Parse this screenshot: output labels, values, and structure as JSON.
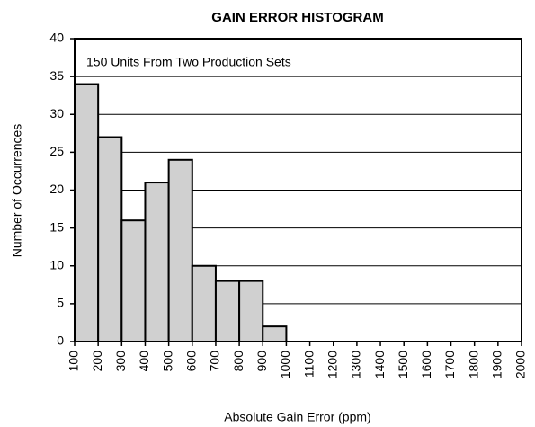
{
  "chart_data": {
    "type": "histogram",
    "title": "GAIN ERROR HISTOGRAM",
    "annotation": "150 Units From Two Production Sets",
    "xlabel": "Absolute Gain Error (ppm)",
    "ylabel": "Number of Occurrences",
    "bins": [
      100,
      200,
      300,
      400,
      500,
      600,
      700,
      800,
      900,
      1000,
      1100,
      1200,
      1300,
      1400,
      1500,
      1600,
      1700,
      1800,
      1900,
      2000
    ],
    "values": [
      34,
      27,
      16,
      21,
      24,
      10,
      8,
      8,
      2,
      0,
      0,
      0,
      0,
      0,
      0,
      0,
      0,
      0,
      0
    ],
    "color": "#d0d0d0",
    "xlim": [
      100,
      2000
    ],
    "xticks": [
      100,
      200,
      300,
      400,
      500,
      600,
      700,
      800,
      900,
      1000,
      1100,
      1200,
      1300,
      1400,
      1500,
      1600,
      1700,
      1800,
      1900,
      2000
    ],
    "ylim": [
      0,
      40
    ],
    "yticks": [
      0,
      5,
      10,
      15,
      20,
      25,
      30,
      35,
      40
    ],
    "grid": true
  }
}
